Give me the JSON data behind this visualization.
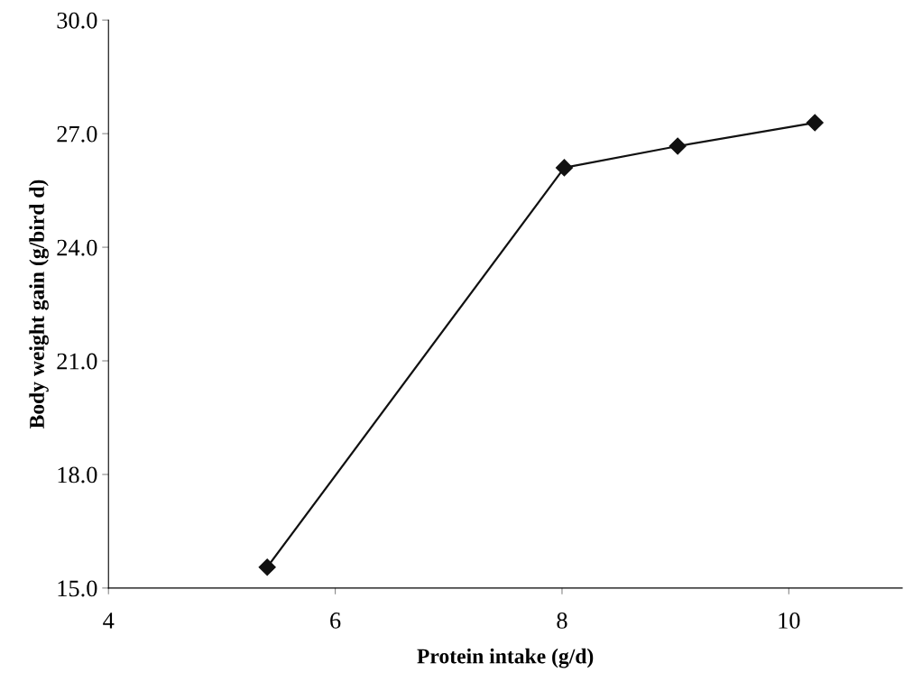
{
  "chart_data": {
    "type": "line",
    "xlabel": "Protein intake (g/d)",
    "ylabel": "Body weight gain (g/bird d)",
    "x": [
      5.4,
      8.02,
      9.02,
      10.23
    ],
    "series": [
      {
        "color": "#111111",
        "values": [
          15.55,
          26.1,
          26.67,
          27.29
        ]
      }
    ],
    "marker": "diamond",
    "line_style": "solid",
    "xlim": [
      4,
      11
    ],
    "xticks": [
      4,
      6,
      8,
      10
    ],
    "ylim": [
      15,
      30
    ],
    "yticks": [
      {
        "value": 15,
        "label": "15.0"
      },
      {
        "value": 18,
        "label": "18.0"
      },
      {
        "value": 21,
        "label": "21.0"
      },
      {
        "value": 24,
        "label": "24.0"
      },
      {
        "value": 27,
        "label": "27.0"
      },
      {
        "value": 30,
        "label": "30.0"
      }
    ],
    "grid": false,
    "legend": false
  }
}
